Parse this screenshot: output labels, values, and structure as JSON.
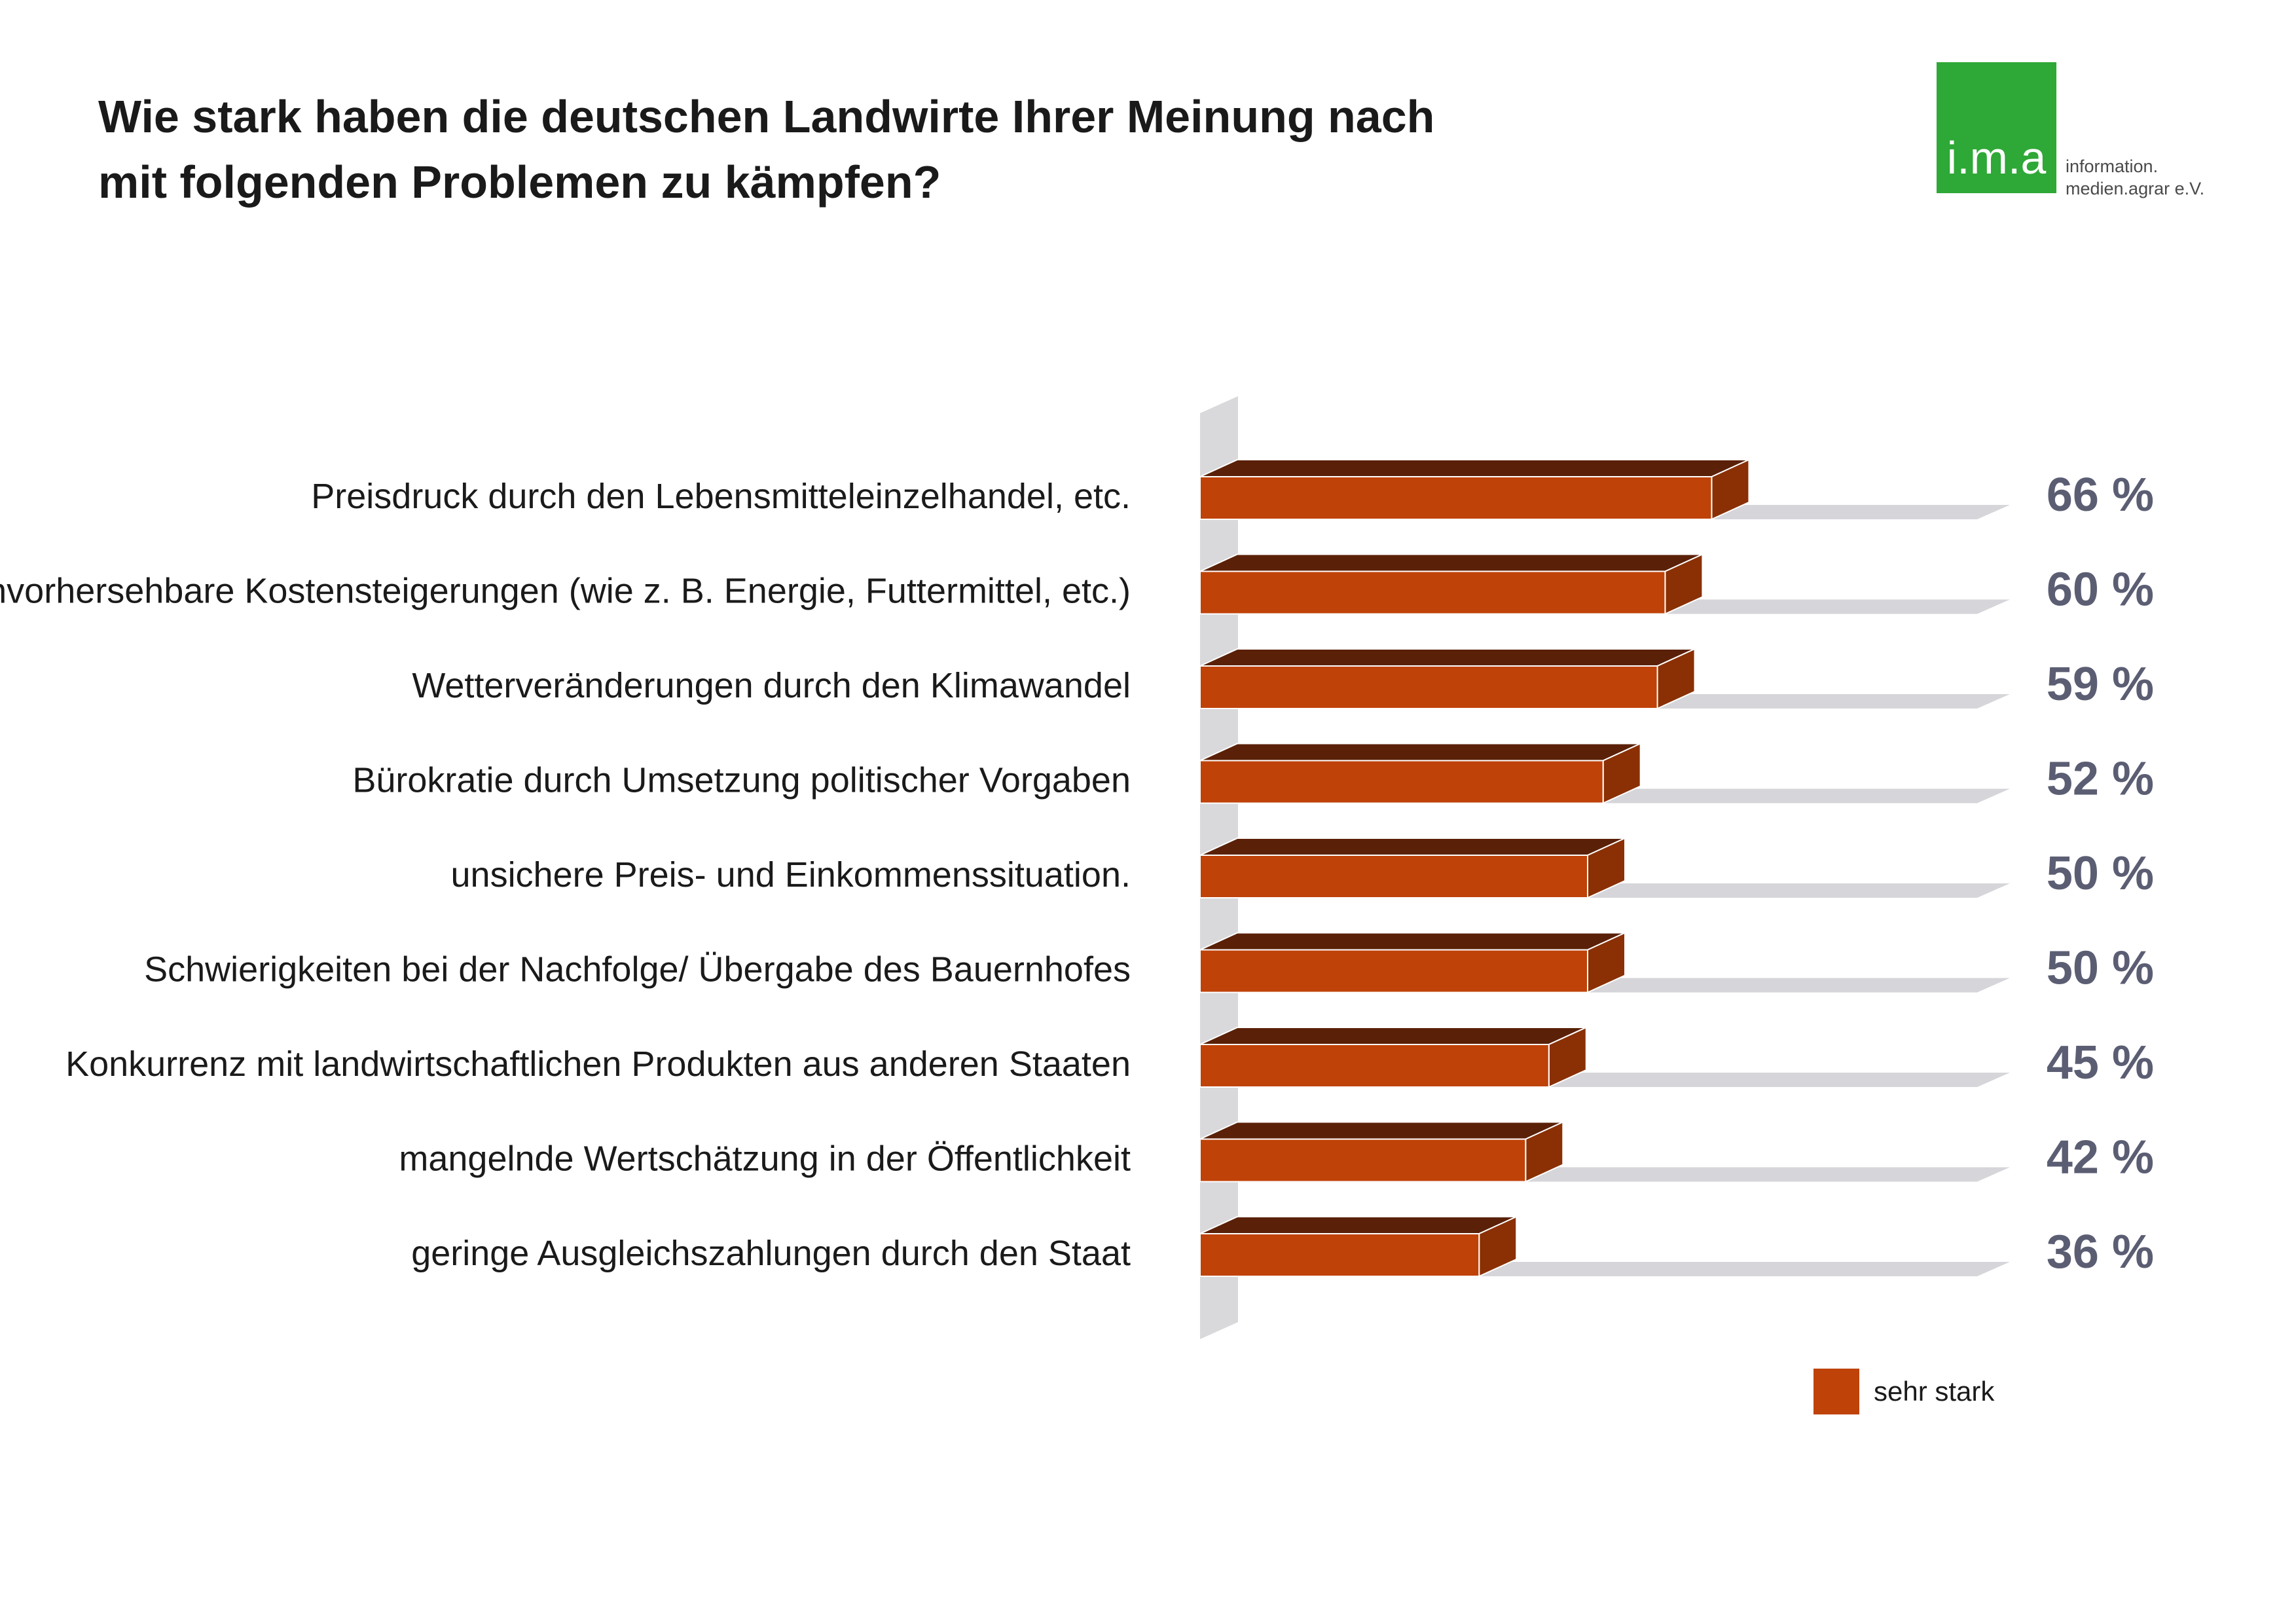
{
  "title_lines": [
    "Wie stark haben die deutschen Landwirte Ihrer Meinung nach",
    "mit folgenden Problemen zu kämpfen?"
  ],
  "logo": {
    "mark": "i.m.a",
    "text_lines": [
      "information.",
      "medien.agrar e.V."
    ],
    "color": "#2ea836"
  },
  "colors": {
    "bar_front": "#bf4208",
    "bar_top": "#5a2108",
    "bar_side": "#8a3004",
    "track": "#d6d6da",
    "axis_wall": "#d9d9dc",
    "value_text": "#5b5e73"
  },
  "chart_data": {
    "type": "bar",
    "orientation": "horizontal",
    "categories": [
      "Preisdruck durch den Lebensmitteleinzelhandel, etc.",
      "unvorhersehbare Kostensteigerungen (wie z. B. Energie, Futtermittel, etc.)",
      "Wetterveränderungen durch den Klimawandel",
      "Bürokratie durch Umsetzung politischer Vorgaben",
      "unsichere Preis- und Einkommenssituation.",
      "Schwierigkeiten bei der Nachfolge/ Übergabe des Bauernhofes",
      "Konkurrenz mit landwirtschaftlichen Produkten aus anderen Staaten",
      "mangelnde Wertschätzung in der Öffentlichkeit",
      "geringe Ausgleichszahlungen durch den Staat"
    ],
    "series": [
      {
        "name": "sehr stark",
        "values": [
          66,
          60,
          59,
          52,
          50,
          50,
          45,
          42,
          36
        ]
      }
    ],
    "value_labels": [
      "66 %",
      "60 %",
      "59 %",
      "52 %",
      "50 %",
      "50 %",
      "45 %",
      "42 %",
      "36 %"
    ],
    "xlim": [
      0,
      100
    ],
    "grid": false,
    "legend_position": "bottom-right"
  }
}
